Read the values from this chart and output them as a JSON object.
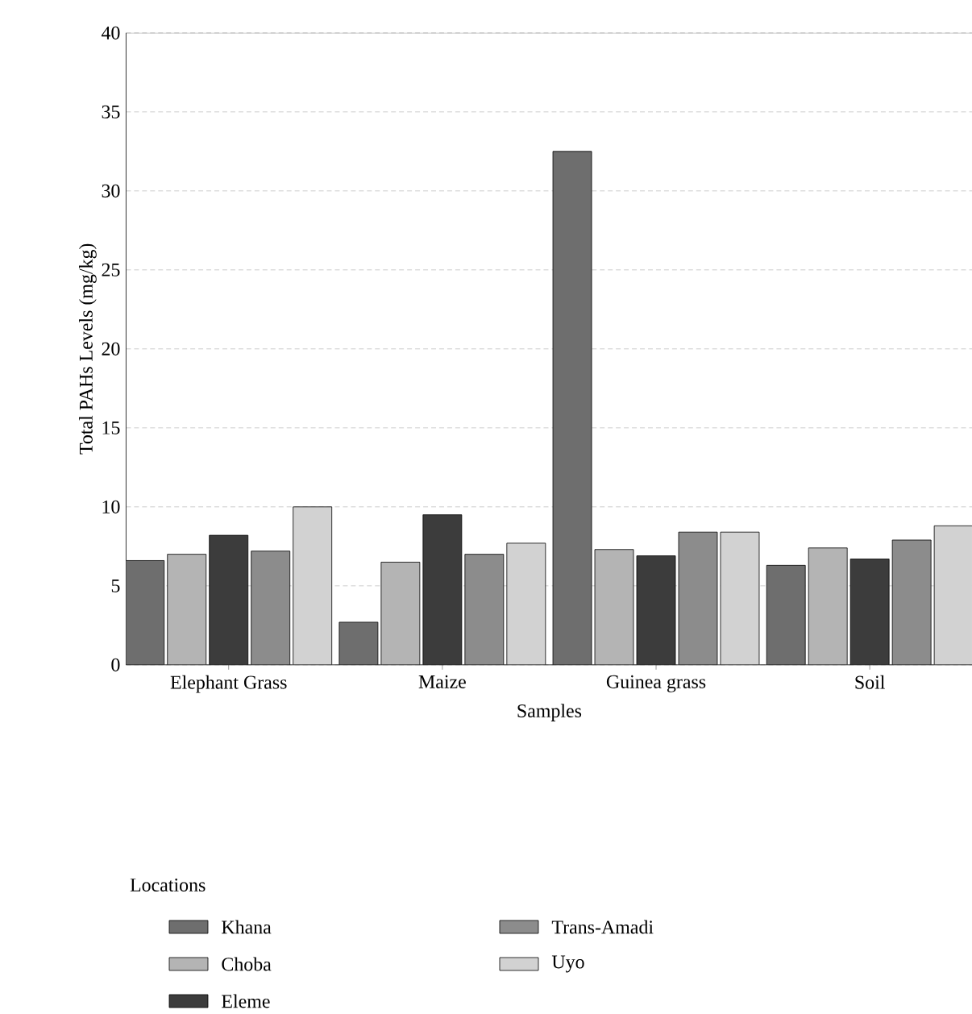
{
  "chart_data": {
    "type": "bar",
    "xlabel": "Samples",
    "ylabel": "Total PAHs Levels (mg/kg)",
    "legend_title": "Locations",
    "categories": [
      "Elephant Grass",
      "Maize",
      "Guinea grass",
      "Soil"
    ],
    "series": [
      {
        "name": "Khana",
        "color": "#6e6e6e",
        "values": [
          6.6,
          2.7,
          32.5,
          6.3
        ]
      },
      {
        "name": "Choba",
        "color": "#b4b4b4",
        "values": [
          7.0,
          6.5,
          7.3,
          7.4
        ]
      },
      {
        "name": "Eleme",
        "color": "#3c3c3c",
        "values": [
          8.2,
          9.5,
          6.9,
          6.7
        ]
      },
      {
        "name": "Trans-Amadi",
        "color": "#8c8c8c",
        "values": [
          7.2,
          7.0,
          8.4,
          7.9
        ]
      },
      {
        "name": "Uyo",
        "color": "#d2d2d2",
        "values": [
          10.0,
          7.7,
          8.4,
          8.8
        ]
      }
    ],
    "ylim": [
      0,
      40
    ],
    "yticks": [
      0,
      5,
      10,
      15,
      20,
      25,
      30,
      35,
      40
    ],
    "grid": "y",
    "legend": "bottom"
  }
}
